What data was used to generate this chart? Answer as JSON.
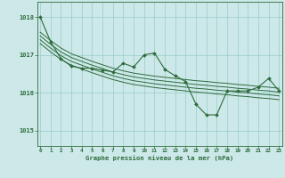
{
  "title": "Graphe pression niveau de la mer (hPa)",
  "bg_color": "#cce8e8",
  "grid_color": "#99cccc",
  "line_color": "#2d6b3c",
  "x_ticks": [
    0,
    1,
    2,
    3,
    4,
    5,
    6,
    7,
    8,
    9,
    10,
    11,
    12,
    13,
    14,
    15,
    16,
    17,
    18,
    19,
    20,
    21,
    22,
    23
  ],
  "y_ticks": [
    1015,
    1016,
    1017,
    1018
  ],
  "ylim": [
    1014.6,
    1018.4
  ],
  "xlim": [
    -0.3,
    23.3
  ],
  "series_main": [
    1018.0,
    1017.35,
    1016.9,
    1016.7,
    1016.65,
    1016.65,
    1016.6,
    1016.55,
    1016.78,
    1016.68,
    1017.0,
    1017.05,
    1016.62,
    1016.45,
    1016.3,
    1015.7,
    1015.42,
    1015.42,
    1016.05,
    1016.05,
    1016.05,
    1016.15,
    1016.38,
    1016.05
  ],
  "series_env1": [
    1017.6,
    1017.38,
    1017.18,
    1017.03,
    1016.93,
    1016.83,
    1016.74,
    1016.65,
    1016.58,
    1016.52,
    1016.48,
    1016.44,
    1016.41,
    1016.38,
    1016.35,
    1016.32,
    1016.3,
    1016.27,
    1016.25,
    1016.22,
    1016.2,
    1016.17,
    1016.15,
    1016.12
  ],
  "series_env2": [
    1017.5,
    1017.28,
    1017.08,
    1016.93,
    1016.83,
    1016.73,
    1016.64,
    1016.55,
    1016.48,
    1016.42,
    1016.38,
    1016.34,
    1016.31,
    1016.28,
    1016.25,
    1016.22,
    1016.2,
    1016.17,
    1016.15,
    1016.12,
    1016.1,
    1016.07,
    1016.05,
    1016.02
  ],
  "series_env3": [
    1017.4,
    1017.18,
    1016.98,
    1016.83,
    1016.73,
    1016.63,
    1016.54,
    1016.45,
    1016.38,
    1016.32,
    1016.28,
    1016.24,
    1016.21,
    1016.18,
    1016.15,
    1016.12,
    1016.1,
    1016.07,
    1016.05,
    1016.02,
    1016.0,
    1015.97,
    1015.95,
    1015.92
  ],
  "series_env4": [
    1017.3,
    1017.08,
    1016.88,
    1016.73,
    1016.63,
    1016.53,
    1016.44,
    1016.35,
    1016.28,
    1016.22,
    1016.18,
    1016.14,
    1016.11,
    1016.08,
    1016.05,
    1016.02,
    1016.0,
    1015.97,
    1015.95,
    1015.92,
    1015.9,
    1015.87,
    1015.85,
    1015.82
  ]
}
